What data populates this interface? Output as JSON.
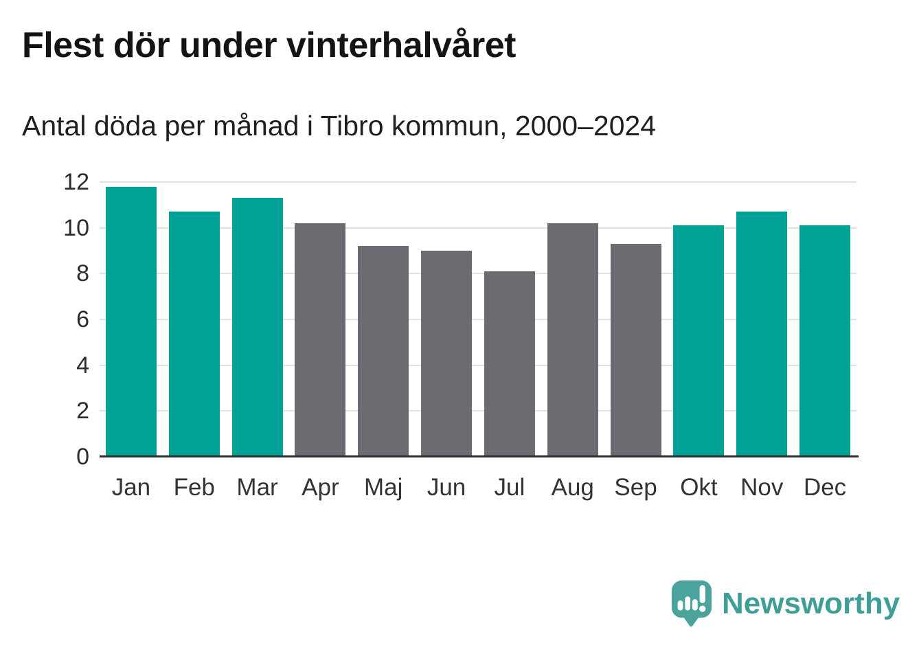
{
  "chart_data": {
    "type": "bar",
    "title": "Flest dör under vinterhalvåret",
    "subtitle": "Antal döda per månad i Tibro kommun, 2000–2024",
    "categories": [
      "Jan",
      "Feb",
      "Mar",
      "Apr",
      "Maj",
      "Jun",
      "Jul",
      "Aug",
      "Sep",
      "Okt",
      "Nov",
      "Dec"
    ],
    "values": [
      11.8,
      10.7,
      11.3,
      10.2,
      9.2,
      9.0,
      8.1,
      10.2,
      9.3,
      10.1,
      10.7,
      10.1
    ],
    "colors": [
      "#00a296",
      "#00a296",
      "#00a296",
      "#6c6b72",
      "#6c6b72",
      "#6c6b72",
      "#6c6b72",
      "#6c6b72",
      "#6c6b72",
      "#00a296",
      "#00a296",
      "#00a296"
    ],
    "highlighted_categories": [
      "Jan",
      "Feb",
      "Mar",
      "Okt",
      "Nov",
      "Dec"
    ],
    "palette": {
      "highlight": "#00a296",
      "default": "#6c6b72"
    },
    "xlabel": "",
    "ylabel": "",
    "ylim": [
      0,
      12
    ],
    "yticks": [
      0,
      2,
      4,
      6,
      8,
      10,
      12
    ],
    "grid": true,
    "legend": false,
    "grid_color": "#e2e2e2",
    "axis_color": "#2e2e2e"
  },
  "footer": {
    "brand": "Newsworthy",
    "brand_color": "#3f9e96",
    "logo_icon": "newsworthy-speech-bubble-bar-chart-icon",
    "logo_bubble_color": "#4aa39c"
  }
}
